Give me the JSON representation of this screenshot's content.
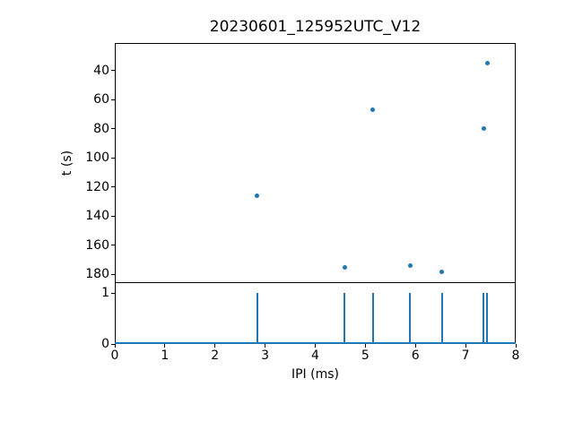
{
  "chart_data": {
    "type": "scatter+stem",
    "title": "20230601_125952UTC_V12",
    "xlabel": "IPI (ms)",
    "xlim": [
      0,
      8
    ],
    "xticks": [
      0,
      1,
      2,
      3,
      4,
      5,
      6,
      7,
      8
    ],
    "series_color": "#1f77b4",
    "axis_color": "#000000",
    "background_color": "#ffffff",
    "grid": false,
    "legend": null,
    "panels": [
      {
        "name": "scatter-t-vs-ipi",
        "type": "scatter",
        "ylabel": "t (s)",
        "y_axis_inverted": true,
        "ylim_top_to_bottom": [
          21,
          186
        ],
        "yticks": [
          40,
          60,
          80,
          100,
          120,
          140,
          160,
          180
        ],
        "points": [
          {
            "ipi_ms": 2.84,
            "t_s": 126
          },
          {
            "ipi_ms": 4.59,
            "t_s": 175
          },
          {
            "ipi_ms": 5.15,
            "t_s": 67
          },
          {
            "ipi_ms": 5.89,
            "t_s": 174
          },
          {
            "ipi_ms": 6.53,
            "t_s": 178
          },
          {
            "ipi_ms": 7.36,
            "t_s": 80
          },
          {
            "ipi_ms": 7.43,
            "t_s": 35
          }
        ]
      },
      {
        "name": "stem-ipi-events",
        "type": "stem",
        "ylim": [
          0,
          1.2
        ],
        "yticks": [
          1,
          0
        ],
        "stem_value": 1,
        "baseline_value": 0,
        "stems_x": [
          2.84,
          4.59,
          5.15,
          5.89,
          6.53,
          7.36,
          7.43
        ]
      }
    ]
  }
}
